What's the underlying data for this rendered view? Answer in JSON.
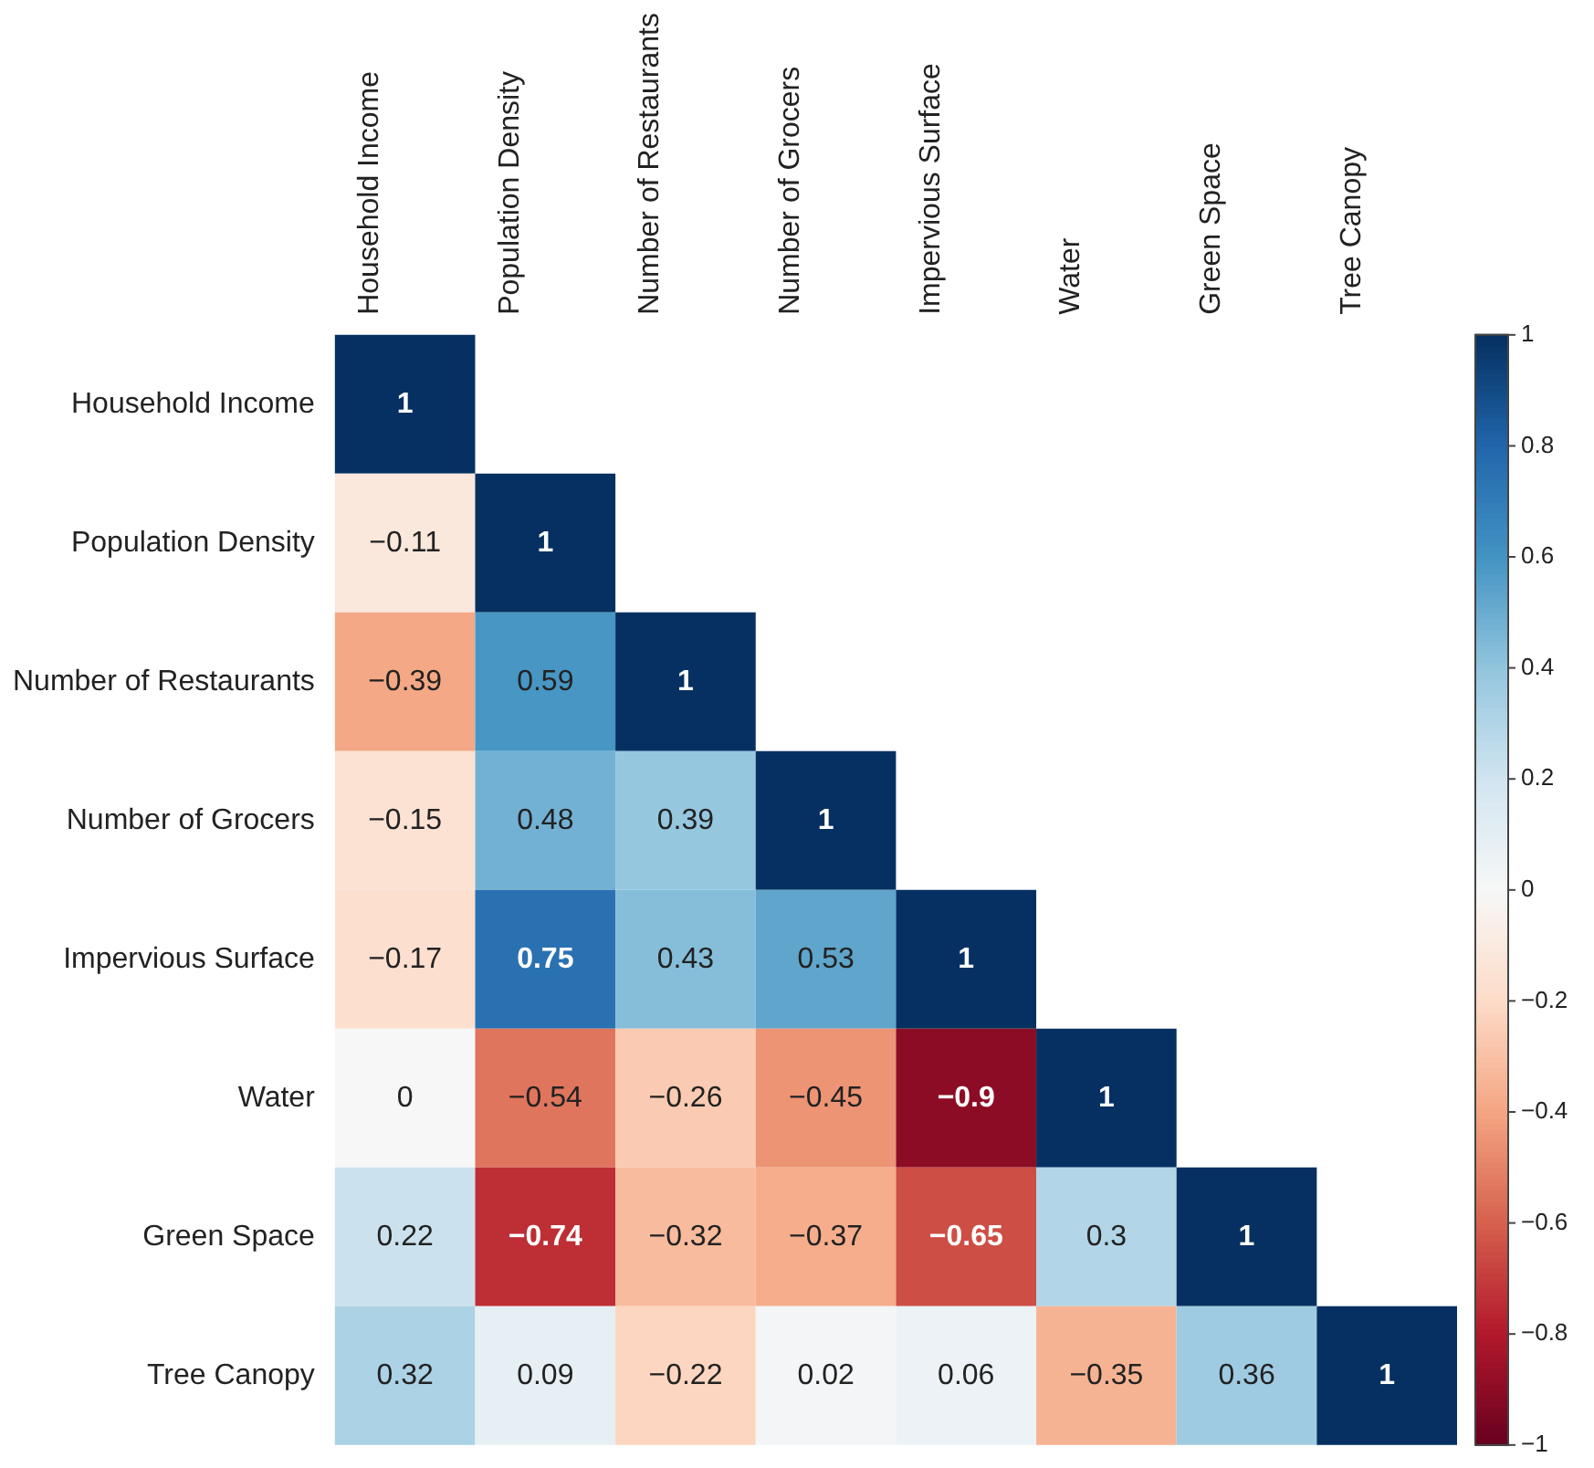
{
  "chart_data": {
    "type": "heatmap",
    "categories": [
      "Household Income",
      "Population Density",
      "Number of Restaurants",
      "Number of Grocers",
      "Impervious Surface",
      "Water",
      "Green Space",
      "Tree Canopy"
    ],
    "y_categories": [
      "Household Income",
      "Population Density",
      "Number of Restaurants",
      "Number of Grocers",
      "Impervious Surface",
      "Water",
      "Green Space",
      "Tree Canopy"
    ],
    "cells": [
      [
        1,
        null,
        null,
        null,
        null,
        null,
        null,
        null
      ],
      [
        -0.11,
        1,
        null,
        null,
        null,
        null,
        null,
        null
      ],
      [
        -0.39,
        0.59,
        1,
        null,
        null,
        null,
        null,
        null
      ],
      [
        -0.15,
        0.48,
        0.39,
        1,
        null,
        null,
        null,
        null
      ],
      [
        -0.17,
        0.75,
        0.43,
        0.53,
        1,
        null,
        null,
        null
      ],
      [
        0,
        -0.54,
        -0.26,
        -0.45,
        -0.9,
        1,
        null,
        null
      ],
      [
        0.22,
        -0.74,
        -0.32,
        -0.37,
        -0.65,
        0.3,
        1,
        null
      ],
      [
        0.32,
        0.09,
        -0.22,
        0.02,
        0.06,
        -0.35,
        0.36,
        1
      ]
    ],
    "cell_labels": [
      [
        "1",
        null,
        null,
        null,
        null,
        null,
        null,
        null
      ],
      [
        "−0.11",
        "1",
        null,
        null,
        null,
        null,
        null,
        null
      ],
      [
        "−0.39",
        "0.59",
        "1",
        null,
        null,
        null,
        null,
        null
      ],
      [
        "−0.15",
        "0.48",
        "0.39",
        "1",
        null,
        null,
        null,
        null
      ],
      [
        "−0.17",
        "0.75",
        "0.43",
        "0.53",
        "1",
        null,
        null,
        null
      ],
      [
        "0",
        "−0.54",
        "−0.26",
        "−0.45",
        "−0.9",
        "1",
        null,
        null
      ],
      [
        "0.22",
        "−0.74",
        "−0.32",
        "−0.37",
        "−0.65",
        "0.3",
        "1",
        null
      ],
      [
        "0.32",
        "0.09",
        "−0.22",
        "0.02",
        "0.06",
        "−0.35",
        "0.36",
        "1"
      ]
    ],
    "clim": [
      -1,
      1
    ],
    "cticks": [
      {
        "value": -1,
        "label": "−1"
      },
      {
        "value": -0.8,
        "label": "−0.8"
      },
      {
        "value": -0.6,
        "label": "−0.6"
      },
      {
        "value": -0.4,
        "label": "−0.4"
      },
      {
        "value": -0.2,
        "label": "−0.2"
      },
      0,
      0.2,
      0.4,
      0.6,
      0.8,
      1
    ]
  }
}
